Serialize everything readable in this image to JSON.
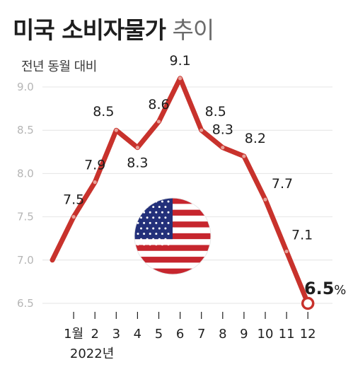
{
  "header": {
    "title_main": "미국 소비자물가",
    "title_sub": "추이"
  },
  "chart_data": {
    "type": "line",
    "title": "미국 소비자물가 추이",
    "ylabel": "전년 동월 대비",
    "x": [
      "",
      "1월",
      "2",
      "3",
      "4",
      "5",
      "6",
      "7",
      "8",
      "9",
      "10",
      "11",
      "12"
    ],
    "x_group_label": "2022년",
    "values": [
      7.0,
      7.5,
      7.9,
      8.5,
      8.3,
      8.6,
      9.1,
      8.5,
      8.3,
      8.2,
      7.7,
      7.1,
      6.5
    ],
    "data_labels": [
      "",
      "7.5",
      "7.9",
      "8.5",
      "8.3",
      "8.6",
      "9.1",
      "8.5",
      "8.3",
      "8.2",
      "7.7",
      "7.1",
      "6.5"
    ],
    "last_label_unit": "%",
    "yticks": [
      "6.5",
      "7.0",
      "7.5",
      "8.0",
      "8.5",
      "9.0"
    ],
    "ylim": [
      6.5,
      9.0
    ],
    "grid": true,
    "line_color": "#c8322c",
    "flag_icon": "us-flag-icon"
  }
}
